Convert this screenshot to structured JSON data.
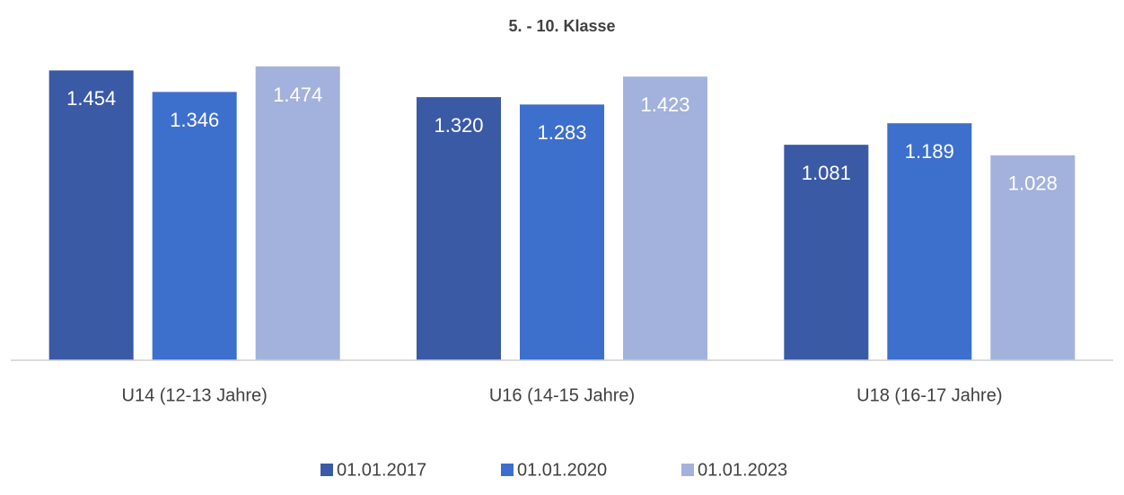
{
  "chart_data": {
    "type": "bar",
    "title": "5. - 10. Klasse",
    "categories": [
      "U14 (12-13 Jahre)",
      "U16 (14-15 Jahre)",
      "U18 (16-17 Jahre)"
    ],
    "series": [
      {
        "name": "01.01.2017",
        "color": "#3a5aa6",
        "values": [
          1454,
          1320,
          1081
        ],
        "value_labels": [
          "1.454",
          "1.320",
          "1.081"
        ]
      },
      {
        "name": "01.01.2020",
        "color": "#3d6fcc",
        "values": [
          1346,
          1283,
          1189
        ],
        "value_labels": [
          "1.346",
          "1.283",
          "1.189"
        ]
      },
      {
        "name": "01.01.2023",
        "color": "#a3b2dc",
        "values": [
          1474,
          1423,
          1028
        ],
        "value_labels": [
          "1.474",
          "1.423",
          "1.028"
        ]
      }
    ],
    "ylim": [
      0,
      1600
    ],
    "legend": "bottom"
  }
}
